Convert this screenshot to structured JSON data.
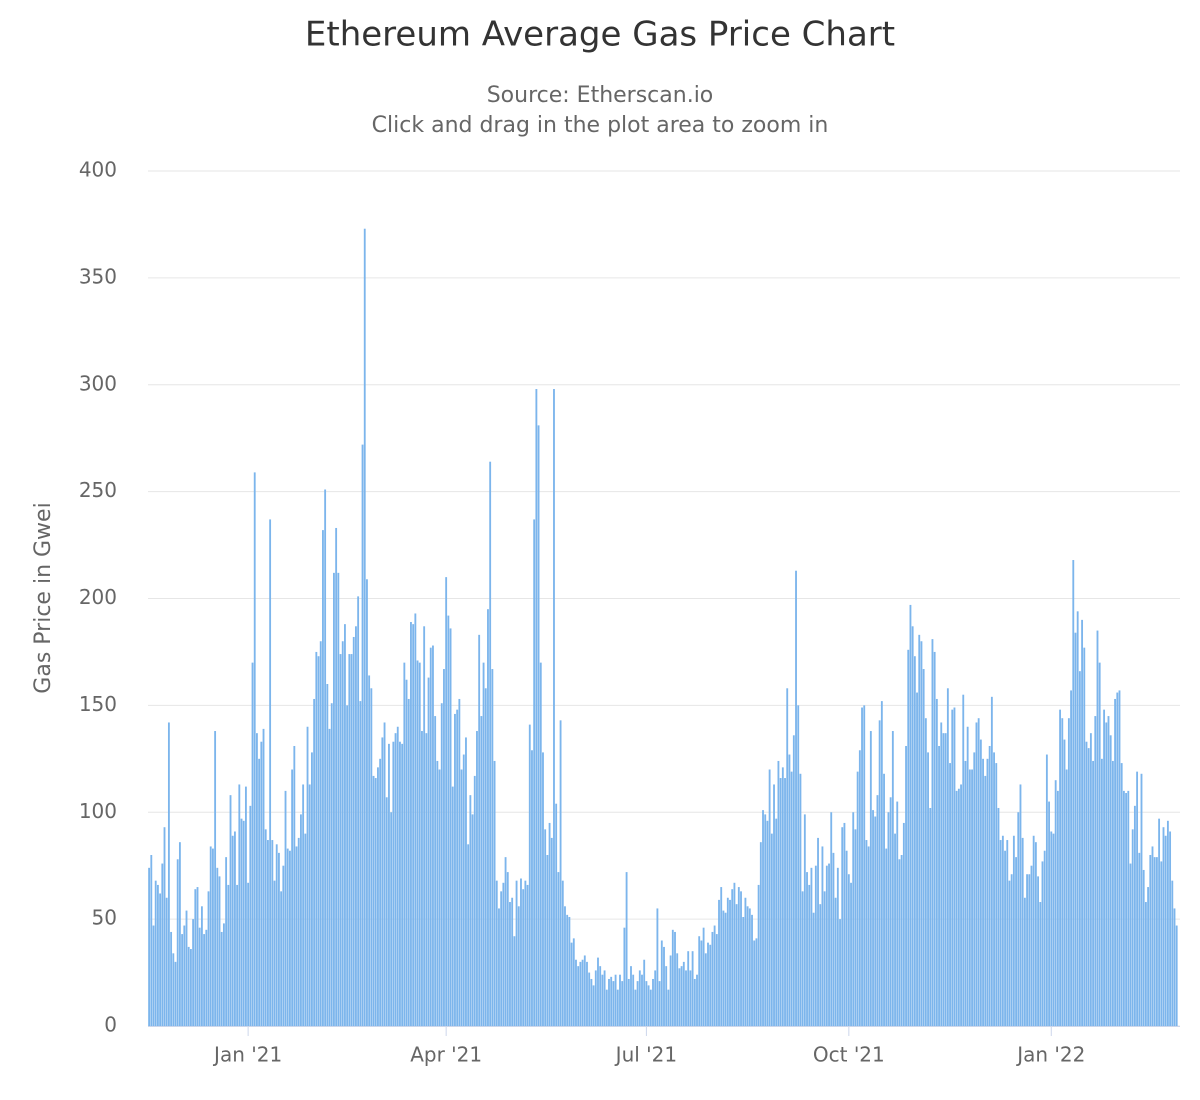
{
  "chart_data": {
    "type": "bar",
    "title": "Ethereum Average Gas Price Chart",
    "subtitle": "Source: Etherscan.io",
    "note": "Click and drag in the plot area to zoom in",
    "y_label": "Gas Price in Gwei",
    "color": "#7cb5ec",
    "grid": true,
    "ylim": [
      0,
      400
    ],
    "yticks": [
      0,
      50,
      100,
      150,
      200,
      250,
      300,
      350,
      400
    ],
    "xlim": [
      0,
      469
    ],
    "xticks": [
      {
        "value": 45.5,
        "label": "Jan '21"
      },
      {
        "value": 135.5,
        "label": "Apr '21"
      },
      {
        "value": 226.5,
        "label": "Jul '21"
      },
      {
        "value": 318.5,
        "label": "Oct '21"
      },
      {
        "value": 410.5,
        "label": "Jan '22"
      }
    ],
    "values": [
      74,
      80,
      47,
      68,
      66,
      62,
      76,
      93,
      60,
      142,
      44,
      34,
      30,
      78,
      86,
      43,
      47,
      54,
      37,
      36,
      50,
      64,
      65,
      46,
      56,
      43,
      45,
      63,
      84,
      83,
      138,
      74,
      70,
      44,
      48,
      79,
      66,
      108,
      89,
      91,
      66,
      113,
      97,
      96,
      112,
      67,
      103,
      170,
      259,
      137,
      125,
      133,
      139,
      92,
      87,
      237,
      87,
      68,
      85,
      81,
      63,
      75,
      110,
      83,
      82,
      120,
      131,
      84,
      88,
      99,
      113,
      90,
      140,
      113,
      128,
      153,
      175,
      173,
      180,
      232,
      251,
      160,
      139,
      151,
      212,
      233,
      212,
      174,
      180,
      188,
      150,
      174,
      174,
      182,
      187,
      201,
      152,
      272,
      373,
      209,
      164,
      158,
      117,
      116,
      121,
      125,
      135,
      142,
      107,
      132,
      100,
      133,
      137,
      140,
      133,
      132,
      170,
      162,
      153,
      189,
      188,
      193,
      171,
      170,
      138,
      187,
      137,
      163,
      177,
      178,
      145,
      124,
      120,
      151,
      167,
      210,
      192,
      186,
      112,
      146,
      148,
      153,
      120,
      127,
      135,
      85,
      108,
      99,
      117,
      138,
      183,
      145,
      170,
      158,
      195,
      264,
      167,
      124,
      68,
      55,
      63,
      67,
      79,
      72,
      58,
      60,
      42,
      68,
      56,
      69,
      64,
      68,
      66,
      141,
      129,
      237,
      298,
      281,
      170,
      128,
      92,
      80,
      95,
      88,
      298,
      104,
      72,
      143,
      68,
      56,
      52,
      51,
      39,
      41,
      31,
      28,
      30,
      31,
      33,
      30,
      25,
      22,
      19,
      26,
      32,
      28,
      24,
      26,
      17,
      22,
      23,
      21,
      24,
      17,
      24,
      21,
      46,
      72,
      22,
      28,
      24,
      17,
      21,
      26,
      24,
      31,
      21,
      19,
      17,
      22,
      26,
      55,
      21,
      40,
      37,
      28,
      17,
      33,
      45,
      44,
      34,
      27,
      28,
      30,
      26,
      35,
      26,
      35,
      22,
      24,
      42,
      40,
      46,
      34,
      39,
      38,
      44,
      47,
      43,
      59,
      65,
      54,
      53,
      60,
      59,
      64,
      67,
      57,
      65,
      63,
      51,
      60,
      56,
      55,
      52,
      40,
      41,
      66,
      86,
      101,
      99,
      96,
      120,
      90,
      113,
      97,
      124,
      116,
      121,
      116,
      158,
      127,
      119,
      136,
      213,
      150,
      118,
      63,
      99,
      72,
      66,
      74,
      53,
      75,
      88,
      57,
      84,
      63,
      75,
      76,
      100,
      81,
      60,
      74,
      50,
      93,
      95,
      82,
      71,
      67,
      100,
      92,
      119,
      129,
      149,
      150,
      87,
      84,
      138,
      101,
      98,
      108,
      143,
      152,
      118,
      83,
      100,
      107,
      138,
      90,
      105,
      78,
      80,
      95,
      131,
      176,
      197,
      187,
      173,
      156,
      183,
      180,
      167,
      144,
      128,
      102,
      181,
      175,
      153,
      131,
      142,
      137,
      137,
      158,
      123,
      148,
      149,
      110,
      111,
      113,
      155,
      124,
      140,
      120,
      120,
      128,
      142,
      144,
      134,
      125,
      117,
      125,
      131,
      154,
      128,
      123,
      102,
      87,
      89,
      82,
      87,
      68,
      71,
      89,
      79,
      100,
      113,
      88,
      60,
      71,
      71,
      75,
      89,
      86,
      70,
      58,
      77,
      82,
      127,
      105,
      91,
      90,
      115,
      110,
      148,
      144,
      134,
      120,
      144,
      157,
      218,
      184,
      194,
      166,
      190,
      177,
      133,
      130,
      137,
      124,
      145,
      185,
      170,
      125,
      148,
      142,
      145,
      136,
      124,
      153,
      156,
      157,
      123,
      110,
      109,
      110,
      76,
      92,
      103,
      119,
      81,
      118,
      73,
      58,
      65,
      80,
      84,
      79,
      79,
      97,
      77,
      93,
      89,
      96,
      91,
      68,
      55,
      47
    ]
  }
}
